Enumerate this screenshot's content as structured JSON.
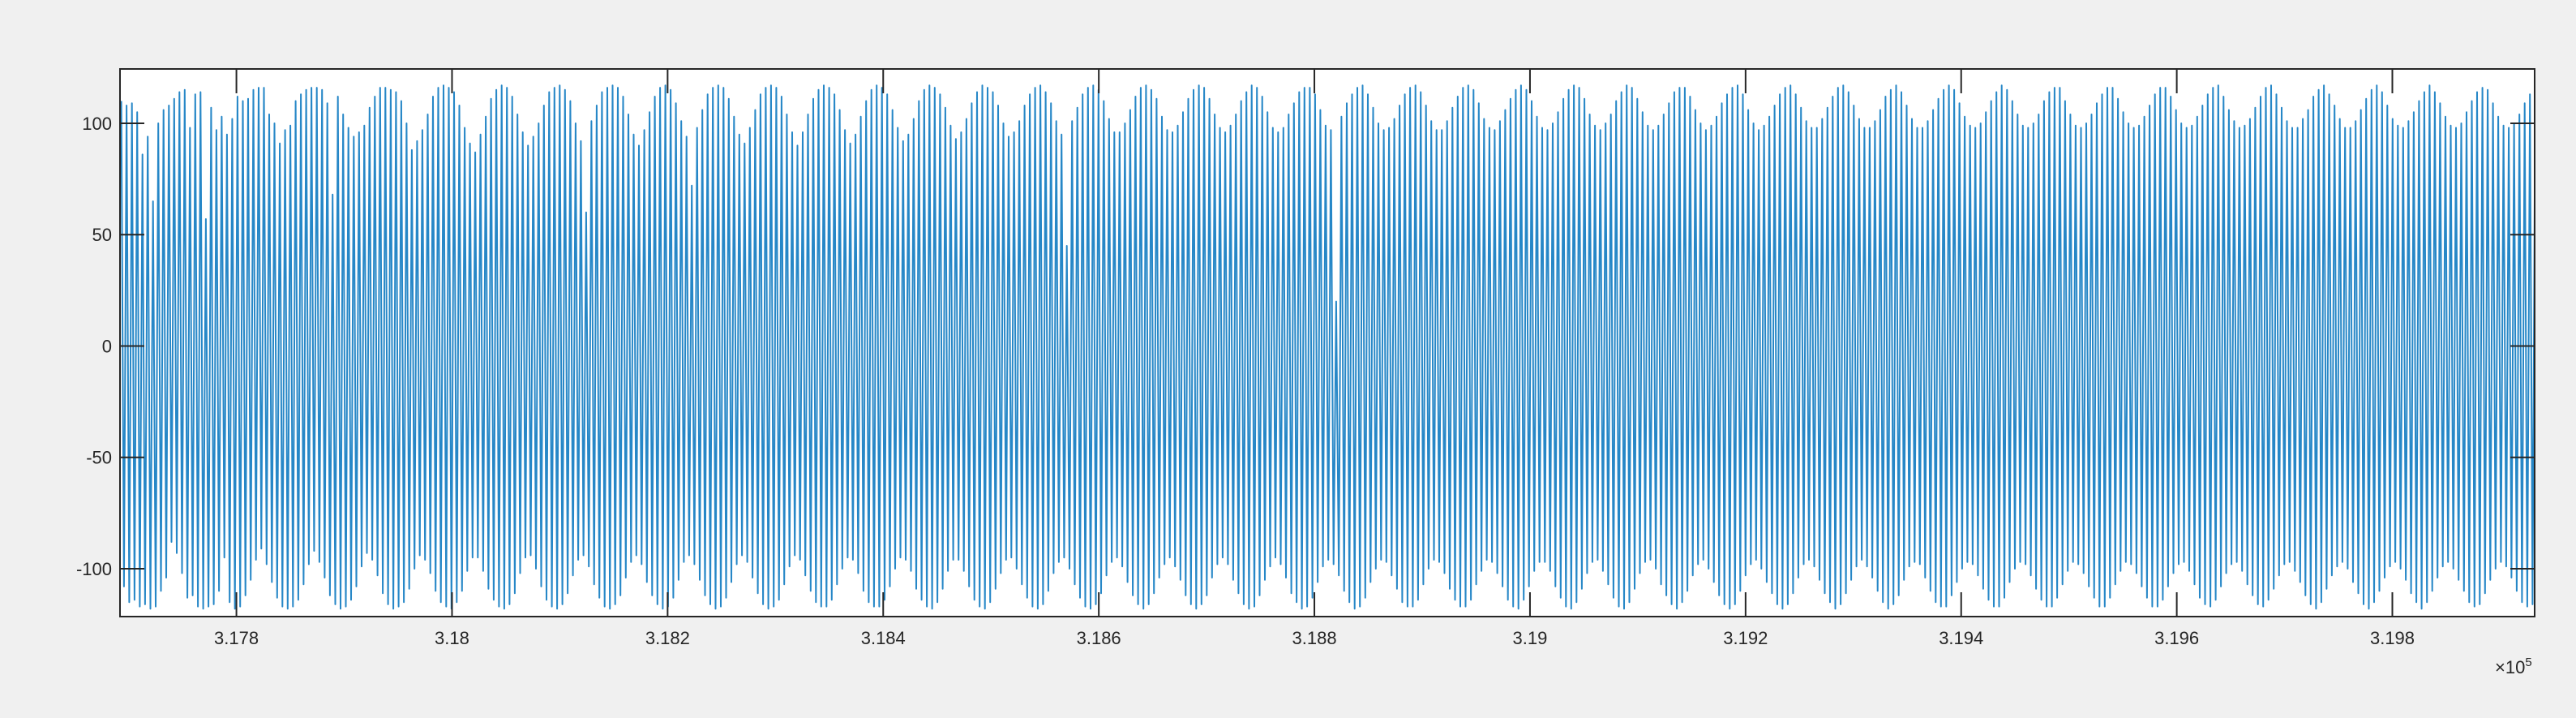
{
  "chart_data": {
    "type": "line",
    "title": "",
    "xlabel": "",
    "ylabel": "",
    "xlim": [
      317692,
      319932
    ],
    "ylim": [
      -121.5,
      124.4
    ],
    "x_exponent_label": "×10",
    "x_exponent": "5",
    "x_ticks": [
      "3.178",
      "3.18",
      "3.182",
      "3.184",
      "3.186",
      "3.188",
      "3.19",
      "3.192",
      "3.194",
      "3.196",
      "3.198"
    ],
    "x_tick_values": [
      317800,
      318000,
      318200,
      318400,
      318600,
      318800,
      319000,
      319200,
      319400,
      319600,
      319800
    ],
    "y_ticks": [
      "-100",
      "-50",
      "0",
      "50",
      "100"
    ],
    "y_tick_values": [
      -100,
      -50,
      0,
      50,
      100
    ],
    "grid": false,
    "line_color": "#0072BD",
    "series": [
      {
        "x_start": 317692,
        "cycle_length": 4.9,
        "cycle_max": [
          110,
          108,
          109,
          105,
          86,
          94,
          65,
          100,
          106,
          108,
          111,
          114,
          115,
          98,
          113,
          114,
          57,
          107,
          97,
          103,
          95,
          102,
          112,
          110,
          111,
          115,
          116,
          116,
          104,
          100,
          91,
          97,
          99,
          110,
          113,
          115,
          116,
          116,
          115,
          109,
          68,
          112,
          104,
          98,
          94,
          96,
          99,
          107,
          112,
          116,
          116,
          115,
          114,
          110,
          100,
          88,
          92,
          97,
          104,
          112,
          116,
          117,
          116,
          114,
          108,
          98,
          91,
          87,
          95,
          103,
          111,
          115,
          117,
          116,
          112,
          104,
          96,
          90,
          94,
          100,
          108,
          114,
          116,
          117,
          115,
          110,
          100,
          92,
          60,
          101,
          108,
          114,
          116,
          117,
          116,
          112,
          104,
          95,
          90,
          97,
          105,
          112,
          116,
          117,
          115,
          109,
          101,
          94,
          72,
          98,
          106,
          113,
          116,
          117,
          116,
          111,
          103,
          95,
          91,
          98,
          106,
          113,
          116,
          117,
          116,
          112,
          104,
          96,
          90,
          96,
          104,
          111,
          115,
          117,
          116,
          113,
          106,
          97,
          91,
          95,
          103,
          110,
          115,
          117,
          116,
          113,
          106,
          98,
          92,
          95,
          102,
          110,
          115,
          117,
          116,
          113,
          107,
          99,
          93,
          96,
          102,
          109,
          114,
          117,
          116,
          114,
          108,
          100,
          94,
          96,
          101,
          108,
          113,
          116,
          117,
          114,
          109,
          101,
          95,
          45,
          101,
          107,
          113,
          116,
          117,
          115,
          110,
          102,
          96,
          96,
          100,
          106,
          112,
          116,
          117,
          115,
          111,
          103,
          97,
          96,
          99,
          105,
          111,
          115,
          117,
          116,
          111,
          104,
          98,
          96,
          99,
          104,
          110,
          114,
          117,
          116,
          112,
          105,
          98,
          96,
          98,
          104,
          109,
          114,
          116,
          116,
          113,
          106,
          99,
          97,
          20,
          103,
          109,
          113,
          116,
          117,
          113,
          107,
          100,
          97,
          98,
          102,
          108,
          113,
          116,
          117,
          114,
          108,
          101,
          97,
          97,
          101,
          107,
          112,
          116,
          117,
          115,
          109,
          102,
          98,
          97,
          101,
          106,
          111,
          115,
          117,
          115,
          110,
          103,
          98,
          97,
          100,
          105,
          111,
          115,
          117,
          116,
          111,
          104,
          99,
          97,
          100,
          104,
          110,
          114,
          117,
          116,
          111,
          105,
          99,
          97,
          99,
          104,
          109,
          114,
          116,
          116,
          112,
          106,
          100,
          97,
          99,
          103,
          109,
          113,
          116,
          117,
          113,
          106,
          100,
          97,
          99,
          103,
          108,
          113,
          116,
          117,
          113,
          107,
          101,
          98,
          98,
          102,
          107,
          112,
          116,
          117,
          114,
          108,
          102,
          98,
          98,
          101,
          106,
          112,
          115,
          117,
          114,
          108,
          102,
          98,
          98,
          101,
          106,
          111,
          115,
          117,
          115,
          109,
          103,
          99,
          98,
          100,
          105,
          110,
          114,
          117,
          115,
          110,
          104,
          99,
          98,
          100,
          104,
          110,
          114,
          116,
          116,
          110,
          104,
          99,
          98,
          100,
          104,
          109,
          113,
          116,
          116,
          111,
          105,
          100,
          98,
          99,
          103,
          108,
          113,
          116,
          116,
          112,
          106,
          100,
          98,
          99,
          103,
          108,
          113,
          116,
          117,
          112,
          106,
          101,
          98,
          99,
          102,
          107,
          112,
          116,
          117,
          113,
          107,
          101,
          98,
          98,
          102,
          106,
          112,
          115,
          117,
          113,
          108,
          102,
          98,
          98,
          101,
          106,
          111,
          115,
          117,
          114,
          108,
          102,
          99,
          98,
          101,
          105,
          110,
          114,
          117,
          114,
          109,
          103,
          99,
          98,
          100,
          105,
          110,
          114,
          116,
          115,
          109,
          103,
          99,
          98,
          100,
          104,
          109,
          113,
          116,
          115,
          110,
          104,
          100,
          98,
          100,
          104,
          108,
          113,
          116,
          115,
          110,
          104,
          100,
          98,
          99,
          103,
          108,
          112,
          116,
          116,
          111,
          105,
          100,
          98,
          99,
          103,
          107,
          112,
          115,
          116,
          111,
          106,
          101,
          98,
          99,
          102,
          107,
          111,
          115,
          116,
          112,
          96,
          94,
          98,
          112,
          116,
          110
        ],
        "cycle_min": [
          -108,
          -115,
          -114,
          -117,
          -116,
          -118,
          -117,
          -110,
          -104,
          -88,
          -93,
          -102,
          -113,
          -112,
          -117,
          -118,
          -117,
          -116,
          -110,
          -95,
          -115,
          -118,
          -117,
          -112,
          -105,
          -96,
          -91,
          -98,
          -106,
          -113,
          -117,
          -118,
          -117,
          -114,
          -107,
          -98,
          -92,
          -97,
          -104,
          -112,
          -116,
          -118,
          -117,
          -114,
          -108,
          -99,
          -93,
          -96,
          -103,
          -111,
          -116,
          -118,
          -117,
          -115,
          -109,
          -100,
          -94,
          -96,
          -102,
          -110,
          -115,
          -117,
          -118,
          -115,
          -110,
          -101,
          -95,
          -95,
          -101,
          -109,
          -114,
          -117,
          -118,
          -116,
          -111,
          -102,
          -95,
          -94,
          -100,
          -108,
          -114,
          -117,
          -118,
          -116,
          -111,
          -103,
          -96,
          -94,
          -99,
          -107,
          -113,
          -117,
          -118,
          -116,
          -112,
          -104,
          -97,
          -94,
          -98,
          -106,
          -112,
          -116,
          -118,
          -117,
          -113,
          -105,
          -97,
          -94,
          -98,
          -105,
          -112,
          -116,
          -118,
          -117,
          -113,
          -106,
          -98,
          -94,
          -97,
          -104,
          -111,
          -116,
          -118,
          -117,
          -114,
          -107,
          -99,
          -94,
          -96,
          -103,
          -110,
          -115,
          -117,
          -117,
          -114,
          -107,
          -100,
          -95,
          -96,
          -102,
          -110,
          -115,
          -117,
          -117,
          -114,
          -108,
          -100,
          -95,
          -96,
          -101,
          -109,
          -114,
          -117,
          -118,
          -115,
          -109,
          -101,
          -96,
          -96,
          -101,
          -108,
          -114,
          -117,
          -118,
          -115,
          -109,
          -102,
          -96,
          -95,
          -100,
          -107,
          -113,
          -117,
          -118,
          -116,
          -110,
          -102,
          -97,
          -95,
          -100,
          -107,
          -113,
          -117,
          -118,
          -116,
          -111,
          -103,
          -97,
          -95,
          -99,
          -106,
          -112,
          -116,
          -118,
          -116,
          -111,
          -104,
          -98,
          -95,
          -99,
          -105,
          -112,
          -116,
          -118,
          -116,
          -112,
          -104,
          -98,
          -95,
          -98,
          -105,
          -111,
          -116,
          -118,
          -117,
          -112,
          -105,
          -99,
          -95,
          -98,
          -104,
          -111,
          -115,
          -118,
          -117,
          -113,
          -106,
          -99,
          -96,
          -98,
          -103,
          -110,
          -115,
          -118,
          -117,
          -113,
          -106,
          -100,
          -96,
          -97,
          -103,
          -109,
          -115,
          -117,
          -117,
          -114,
          -107,
          -100,
          -96,
          -97,
          -102,
          -109,
          -114,
          -117,
          -117,
          -114,
          -107,
          -101,
          -96,
          -97,
          -102,
          -108,
          -114,
          -117,
          -118,
          -114,
          -108,
          -101,
          -97,
          -97,
          -101,
          -108,
          -113,
          -117,
          -118,
          -115,
          -109,
          -102,
          -97,
          -96,
          -101,
          -107,
          -113,
          -117,
          -118,
          -115,
          -109,
          -102,
          -97,
          -96,
          -100,
          -107,
          -112,
          -116,
          -118,
          -115,
          -110,
          -103,
          -98,
          -96,
          -100,
          -106,
          -112,
          -116,
          -118,
          -116,
          -110,
          -103,
          -98,
          -96,
          -100,
          -106,
          -111,
          -116,
          -118,
          -116,
          -111,
          -104,
          -98,
          -96,
          -99,
          -105,
          -111,
          -115,
          -118,
          -116,
          -111,
          -105,
          -99,
          -96,
          -99,
          -104,
          -110,
          -115,
          -118,
          -116,
          -112,
          -105,
          -99,
          -97,
          -98,
          -104,
          -110,
          -115,
          -117,
          -117,
          -112,
          -106,
          -100,
          -97,
          -98,
          -103,
          -109,
          -114,
          -117,
          -117,
          -113,
          -106,
          -100,
          -97,
          -98,
          -103,
          -109,
          -114,
          -117,
          -117,
          -113,
          -107,
          -101,
          -97,
          -98,
          -102,
          -108,
          -113,
          -117,
          -117,
          -113,
          -107,
          -101,
          -97,
          -98,
          -102,
          -108,
          -113,
          -117,
          -117,
          -114,
          -108,
          -102,
          -98,
          -97,
          -101,
          -107,
          -113,
          -116,
          -117,
          -114,
          -108,
          -102,
          -98,
          -97,
          -101,
          -107,
          -112,
          -116,
          -117,
          -114,
          -109,
          -103,
          -98,
          -97,
          -101,
          -106,
          -112,
          -116,
          -118,
          -115,
          -109,
          -103,
          -99,
          -97,
          -100,
          -106,
          -111,
          -116,
          -118,
          -115,
          -110,
          -104,
          -99,
          -97,
          -100,
          -105,
          -111,
          -115,
          -118,
          -115,
          -110,
          -104,
          -99,
          -97,
          -100,
          -105,
          -110,
          -115,
          -117,
          -116,
          -111,
          -105,
          -100,
          -97,
          -99,
          -104,
          -110,
          -115,
          -117,
          -116,
          -111,
          -105,
          -100,
          -97,
          -99,
          -104,
          -109,
          -114,
          -117,
          -116,
          -111,
          -106,
          -100,
          -97,
          -99,
          -103,
          -109,
          -114,
          -117,
          -116,
          -112,
          -106,
          -101,
          -98,
          -99,
          -103,
          -108,
          -113,
          -117,
          -116,
          -112,
          -107,
          -101,
          -98,
          -98,
          -102,
          -108,
          -113,
          -116,
          -117,
          -112,
          -107,
          -102,
          -115,
          -117,
          -60,
          -110,
          -112,
          -100
        ]
      }
    ]
  }
}
